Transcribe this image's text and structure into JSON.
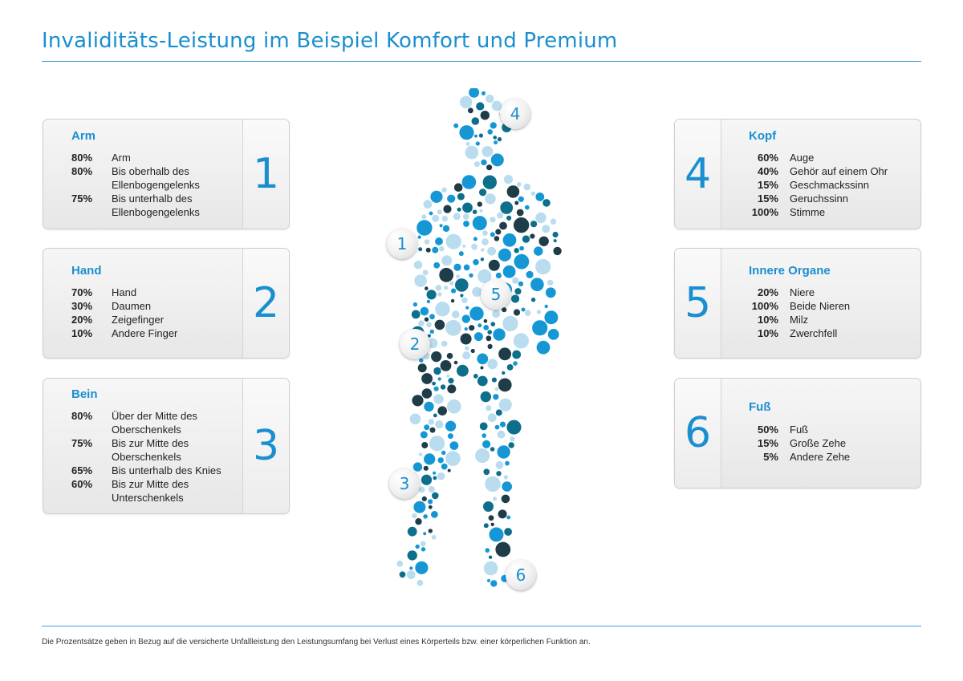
{
  "title": "Invaliditäts-Leistung im Beispiel Komfort und Premium",
  "footnote": "Die Prozentsätze geben in Bezug auf die versicherte Unfallleistung den Leistungsumfang bei Verlust eines Körperteils bzw. einer körperlichen Funktion an.",
  "colors": {
    "accent": "#1a8fd0",
    "dot_dark": "#1f3d48",
    "dot_mid": "#0d6f8c",
    "dot_blue": "#1597d6",
    "dot_light": "#b9dcef"
  },
  "cards": [
    {
      "number": "1",
      "heading": "Arm",
      "rows": [
        {
          "pct": "80%",
          "label": "Arm"
        },
        {
          "pct": "80%",
          "label": "Bis oberhalb des Ellenbogengelenks"
        },
        {
          "pct": "75%",
          "label": "Bis unterhalb des Ellenbogengelenks"
        }
      ]
    },
    {
      "number": "2",
      "heading": "Hand",
      "rows": [
        {
          "pct": "70%",
          "label": "Hand"
        },
        {
          "pct": "30%",
          "label": "Daumen"
        },
        {
          "pct": "20%",
          "label": "Zeigefinger"
        },
        {
          "pct": "10%",
          "label": "Andere Finger"
        }
      ]
    },
    {
      "number": "3",
      "heading": "Bein",
      "rows": [
        {
          "pct": "80%",
          "label": "Über der Mitte des Oberschenkels"
        },
        {
          "pct": "75%",
          "label": "Bis zur Mitte des Oberschenkels"
        },
        {
          "pct": "65%",
          "label": "Bis unterhalb des Knies"
        },
        {
          "pct": "60%",
          "label": "Bis zur Mitte des Unterschenkels"
        }
      ]
    },
    {
      "number": "4",
      "heading": "Kopf",
      "rows": [
        {
          "pct": "60%",
          "label": "Auge"
        },
        {
          "pct": "40%",
          "label": "Gehör auf einem Ohr"
        },
        {
          "pct": "15%",
          "label": "Geschmackssinn"
        },
        {
          "pct": "15%",
          "label": "Geruchssinn"
        },
        {
          "pct": "100%",
          "label": "Stimme"
        }
      ]
    },
    {
      "number": "5",
      "heading": "Innere Organe",
      "rows": [
        {
          "pct": "20%",
          "label": "Niere"
        },
        {
          "pct": "100%",
          "label": "Beide Nieren"
        },
        {
          "pct": "10%",
          "label": "Milz"
        },
        {
          "pct": "10%",
          "label": "Zwerchfell"
        }
      ]
    },
    {
      "number": "6",
      "heading": "Fuß",
      "rows": [
        {
          "pct": "50%",
          "label": "Fuß"
        },
        {
          "pct": "15%",
          "label": "Große Zehe"
        },
        {
          "pct": "5%",
          "label": "Andere Zehe"
        }
      ]
    }
  ],
  "markers": [
    "1",
    "2",
    "3",
    "4",
    "5",
    "6"
  ]
}
